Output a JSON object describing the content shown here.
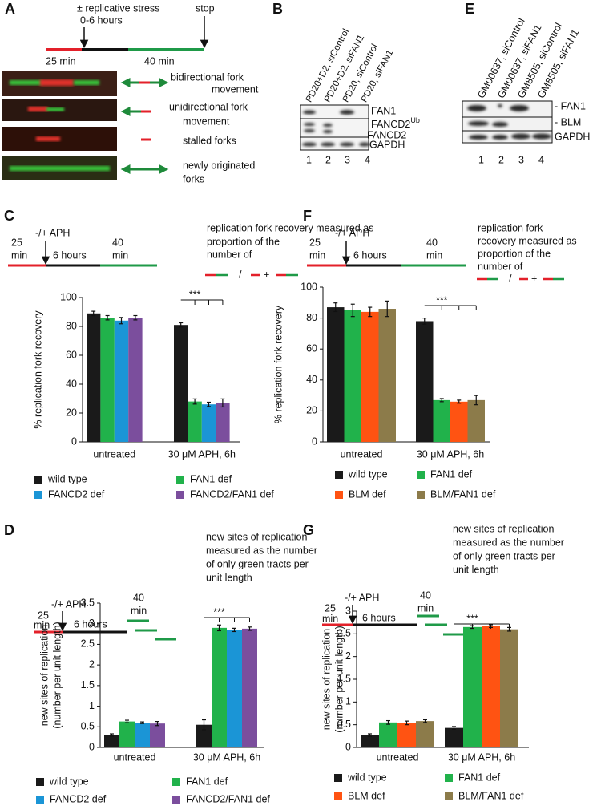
{
  "panel_A": {
    "label": "A",
    "stress": "± replicative stress",
    "hours": "0-6 hours",
    "stop": "stop",
    "t1": "25 min",
    "t2": "40 min",
    "fibers": [
      [
        "bidirectional fork",
        "movement"
      ],
      [
        "unidirectional fork",
        "movement"
      ],
      [
        "stalled forks"
      ],
      [
        "newly originated",
        "forks"
      ]
    ]
  },
  "panel_B": {
    "label": "B",
    "lanes": [
      "PD20+D2, siControl",
      "PD20+D2, siFAN1",
      "PD20, siControl",
      "PD20, siFAN1"
    ],
    "bands": [
      {
        "text": "FAN1"
      },
      {
        "text": "FANCD2",
        "sup": "Ub"
      },
      {
        "text": "FANCD2"
      },
      {
        "text": "GAPDH"
      }
    ],
    "lane_numbers": [
      1,
      2,
      3,
      4
    ]
  },
  "panel_E": {
    "label": "E",
    "lanes": [
      "GM00637, siControl",
      "GM00637, siFAN1",
      "GM8505, siControl",
      "GM8505, siFAN1"
    ],
    "bands": [
      "- FAN1",
      "- BLM",
      "GAPDH"
    ],
    "lane_numbers": [
      1,
      2,
      3,
      4
    ]
  },
  "panel_C": {
    "label": "C",
    "treatment": "-/+ APH",
    "t1": [
      "25",
      "min"
    ],
    "t2": "6 hours",
    "t3": [
      "40",
      "min"
    ],
    "note": [
      "replication fork recovery measured as",
      "proportion of the",
      "number of"
    ],
    "slash": "/",
    "plus": "+"
  },
  "panel_F": {
    "label": "F",
    "treatment": "-/+ APH",
    "t1": [
      "25",
      "min"
    ],
    "t2": "6 hours",
    "t3": [
      "40",
      "min"
    ],
    "note": [
      "replication fork",
      "recovery measured as",
      "proportion of the",
      "number of"
    ],
    "slash": "/",
    "plus": "+"
  },
  "panel_D": {
    "label": "D",
    "treatment": "-/+ APH",
    "t1": [
      "25",
      "min"
    ],
    "t2": "6 hours",
    "t3": [
      "40",
      "min"
    ],
    "note": [
      "new sites of replication",
      "measured as the number",
      "of only green tracts per",
      "unit length"
    ]
  },
  "panel_G": {
    "label": "G",
    "treatment": "-/+ APH",
    "t1": [
      "25",
      "min"
    ],
    "t2": "6 hours",
    "t3": [
      "40",
      "min"
    ],
    "note": [
      "new sites of replication",
      "measured as the number",
      "of only green tracts per",
      "unit length"
    ]
  },
  "chart_data": [
    {
      "type": "bar",
      "ylabel": [
        "% replication fork recovery"
      ],
      "categories": [
        "untreated",
        "30 μM APH, 6h"
      ],
      "ylim": [
        0,
        100
      ],
      "yticks": [
        0,
        20,
        40,
        60,
        80,
        100
      ],
      "significance": "***",
      "series": [
        {
          "name": "wild type",
          "color": "#1a1a1a",
          "values": [
            89,
            81
          ],
          "errors": [
            1.5,
            1.5
          ]
        },
        {
          "name": "FAN1 def",
          "color": "#21b24b",
          "values": [
            86,
            28
          ],
          "errors": [
            1.5,
            1.8
          ]
        },
        {
          "name": "FANCD2 def",
          "color": "#1b95d6",
          "values": [
            84,
            26
          ],
          "errors": [
            2.2,
            1.5
          ]
        },
        {
          "name": "FANCD2/FAN1 def",
          "color": "#7b4e9d",
          "values": [
            86,
            27
          ],
          "errors": [
            1.5,
            2.8
          ]
        }
      ]
    },
    {
      "type": "bar",
      "ylabel": [
        "% replication fork recovery"
      ],
      "categories": [
        "untreated",
        "30 μM APH, 6h"
      ],
      "ylim": [
        0,
        100
      ],
      "yticks": [
        0,
        20,
        40,
        60,
        80,
        100
      ],
      "significance": "***",
      "series": [
        {
          "name": "wild type",
          "color": "#1a1a1a",
          "values": [
            87,
            78
          ],
          "errors": [
            2.8,
            2
          ]
        },
        {
          "name": "FAN1 def",
          "color": "#21b24b",
          "values": [
            85,
            27
          ],
          "errors": [
            4,
            1
          ]
        },
        {
          "name": "BLM def",
          "color": "#ff5312",
          "values": [
            84,
            26
          ],
          "errors": [
            3,
            1
          ]
        },
        {
          "name": "BLM/FAN1 def",
          "color": "#8c7b4a",
          "values": [
            86,
            27
          ],
          "errors": [
            5,
            3
          ]
        }
      ]
    },
    {
      "type": "bar",
      "ylabel": [
        "new sites of replication",
        "(number per unit length)"
      ],
      "categories": [
        "untreated",
        "30 μM APH, 6h"
      ],
      "ylim": [
        0,
        3.5
      ],
      "yticks": [
        0,
        0.5,
        1,
        1.5,
        2,
        2.5,
        3,
        3.5
      ],
      "significance": "***",
      "series": [
        {
          "name": "wild type",
          "color": "#1a1a1a",
          "values": [
            0.3,
            0.55
          ],
          "errors": [
            0.03,
            0.12
          ]
        },
        {
          "name": "FAN1 def",
          "color": "#21b24b",
          "values": [
            0.63,
            2.9
          ],
          "errors": [
            0.03,
            0.07
          ]
        },
        {
          "name": "FANCD2 def",
          "color": "#1b95d6",
          "values": [
            0.6,
            2.85
          ],
          "errors": [
            0.02,
            0.04
          ]
        },
        {
          "name": "FANCD2/FAN1 def",
          "color": "#7b4e9d",
          "values": [
            0.58,
            2.88
          ],
          "errors": [
            0.05,
            0.04
          ]
        }
      ]
    },
    {
      "type": "bar",
      "ylabel": [
        "new sites of replication",
        "(number per unit length)"
      ],
      "categories": [
        "untreated",
        "30 μM APH, 6h"
      ],
      "ylim": [
        0,
        3
      ],
      "yticks": [
        0,
        0.5,
        1,
        1.5,
        2,
        2.5,
        3
      ],
      "significance": "***",
      "series": [
        {
          "name": "wild type",
          "color": "#1a1a1a",
          "values": [
            0.27,
            0.43
          ],
          "errors": [
            0.03,
            0.03
          ]
        },
        {
          "name": "FAN1 def",
          "color": "#21b24b",
          "values": [
            0.55,
            2.65
          ],
          "errors": [
            0.04,
            0.03
          ]
        },
        {
          "name": "BLM def",
          "color": "#ff5312",
          "values": [
            0.54,
            2.67
          ],
          "errors": [
            0.04,
            0.03
          ]
        },
        {
          "name": "BLM/FAN1 def",
          "color": "#8c7b4a",
          "values": [
            0.58,
            2.6
          ],
          "errors": [
            0.03,
            0.04
          ]
        }
      ]
    }
  ]
}
